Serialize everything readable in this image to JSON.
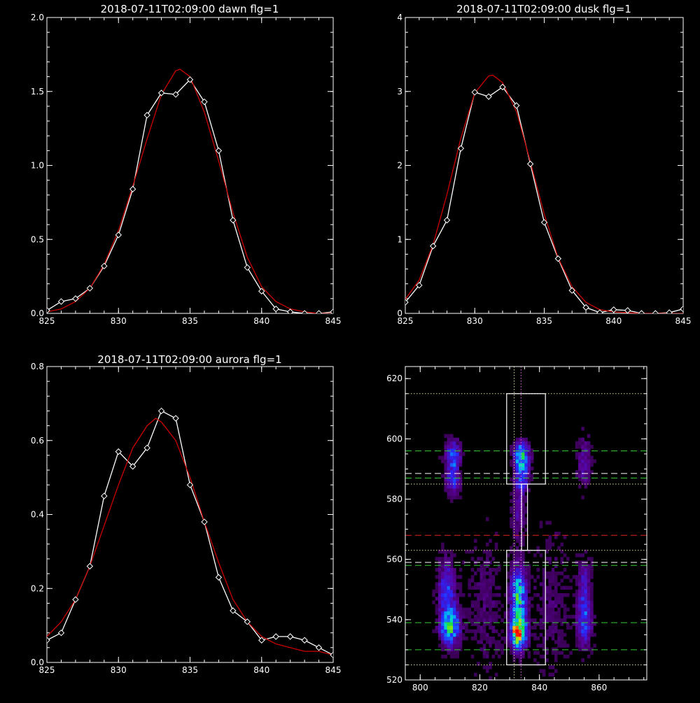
{
  "chart_data": [
    {
      "id": "dawn",
      "type": "line",
      "title": "2018-07-11T02:09:00 dawn flg=1",
      "xlabel": "",
      "ylabel": "",
      "xlim": [
        825,
        845
      ],
      "ylim": [
        0,
        2.0
      ],
      "xticks": [
        "825",
        "830",
        "835",
        "840",
        "845"
      ],
      "yticks": [
        "0.0",
        "0.5",
        "1.0",
        "1.5",
        "2.0"
      ],
      "grid": false,
      "series": [
        {
          "color": "#ffffff",
          "marker": "diamond",
          "x": [
            825,
            826,
            827,
            828,
            829,
            830,
            831,
            832,
            833,
            834,
            835,
            836,
            837,
            838,
            839,
            840,
            841,
            842,
            843,
            844,
            845
          ],
          "y": [
            0.02,
            0.08,
            0.1,
            0.17,
            0.32,
            0.53,
            0.84,
            1.34,
            1.49,
            1.48,
            1.58,
            1.43,
            1.1,
            0.63,
            0.31,
            0.15,
            0.03,
            0.01,
            0.0,
            0.0,
            0.01
          ]
        },
        {
          "color": "#cc0000",
          "marker": "none",
          "x": [
            825,
            826,
            827,
            828,
            829,
            830,
            831,
            832,
            833,
            834,
            834.3,
            835,
            836,
            837,
            838,
            839,
            840,
            841,
            842,
            843,
            844,
            845
          ],
          "y": [
            0.01,
            0.03,
            0.08,
            0.17,
            0.33,
            0.56,
            0.86,
            1.18,
            1.48,
            1.64,
            1.65,
            1.6,
            1.36,
            1.03,
            0.68,
            0.38,
            0.18,
            0.08,
            0.03,
            0.01,
            0.0,
            0.0
          ]
        }
      ]
    },
    {
      "id": "dusk",
      "type": "line",
      "title": "2018-07-11T02:09:00 dusk flg=1",
      "xlabel": "",
      "ylabel": "",
      "xlim": [
        825,
        845
      ],
      "ylim": [
        0,
        4
      ],
      "xticks": [
        "825",
        "830",
        "835",
        "840",
        "845"
      ],
      "yticks": [
        "0",
        "1",
        "2",
        "3",
        "4"
      ],
      "grid": false,
      "series": [
        {
          "color": "#ffffff",
          "marker": "diamond",
          "x": [
            825,
            826,
            827,
            828,
            829,
            830,
            831,
            832,
            833,
            834,
            835,
            836,
            837,
            838,
            839,
            840,
            841,
            842,
            843,
            844,
            845
          ],
          "y": [
            0.15,
            0.38,
            0.91,
            1.26,
            2.23,
            2.99,
            2.93,
            3.06,
            2.81,
            2.02,
            1.23,
            0.74,
            0.31,
            0.08,
            0.01,
            0.05,
            0.04,
            0.0,
            0.0,
            0.01,
            0.06
          ]
        },
        {
          "color": "#cc0000",
          "marker": "none",
          "x": [
            825,
            826,
            827,
            828,
            829,
            830,
            831,
            831.3,
            832,
            833,
            834,
            835,
            836,
            837,
            838,
            839,
            840,
            841,
            842,
            843,
            844,
            845
          ],
          "y": [
            0.19,
            0.45,
            0.93,
            1.61,
            2.37,
            2.98,
            3.21,
            3.22,
            3.12,
            2.73,
            2.05,
            1.34,
            0.75,
            0.36,
            0.15,
            0.05,
            0.02,
            0.01,
            0.0,
            0.0,
            0.0,
            0.0
          ]
        }
      ]
    },
    {
      "id": "aurora",
      "type": "line",
      "title": "2018-07-11T02:09:00 aurora flg=1",
      "xlabel": "",
      "ylabel": "",
      "xlim": [
        825,
        845
      ],
      "ylim": [
        0,
        0.8
      ],
      "xticks": [
        "825",
        "830",
        "835",
        "840",
        "845"
      ],
      "yticks": [
        "0.0",
        "0.2",
        "0.4",
        "0.6",
        "0.8"
      ],
      "grid": false,
      "series": [
        {
          "color": "#ffffff",
          "marker": "diamond",
          "x": [
            825,
            826,
            827,
            828,
            829,
            830,
            831,
            832,
            833,
            834,
            835,
            836,
            837,
            838,
            839,
            840,
            841,
            842,
            843,
            844,
            845
          ],
          "y": [
            0.06,
            0.08,
            0.17,
            0.26,
            0.45,
            0.57,
            0.53,
            0.58,
            0.68,
            0.66,
            0.48,
            0.38,
            0.23,
            0.14,
            0.11,
            0.06,
            0.07,
            0.07,
            0.06,
            0.04,
            0.02
          ]
        },
        {
          "color": "#cc0000",
          "marker": "none",
          "x": [
            825,
            826,
            827,
            828,
            829,
            830,
            831,
            832,
            832.6,
            833,
            834,
            835,
            836,
            837,
            838,
            839,
            840,
            841,
            842,
            843,
            844,
            845
          ],
          "y": [
            0.07,
            0.11,
            0.17,
            0.26,
            0.37,
            0.48,
            0.58,
            0.64,
            0.66,
            0.65,
            0.6,
            0.5,
            0.38,
            0.27,
            0.17,
            0.11,
            0.07,
            0.05,
            0.04,
            0.03,
            0.03,
            0.02
          ]
        }
      ]
    },
    {
      "id": "image-panel",
      "type": "heatmap",
      "title": "",
      "xlabel": "",
      "ylabel": "",
      "xlim": [
        795,
        876
      ],
      "ylim": [
        520,
        624
      ],
      "xticks": [
        "800",
        "820",
        "840",
        "860"
      ],
      "yticks": [
        "520",
        "540",
        "560",
        "580",
        "600",
        "620"
      ],
      "colormap": "rainbow",
      "background_color": "#000000",
      "blobs": [
        {
          "x": 833,
          "y": 536,
          "sx": 1.6,
          "sy": 3.5,
          "value": 1.0
        },
        {
          "x": 833,
          "y": 548,
          "sx": 1.6,
          "sy": 6.0,
          "value": 0.55
        },
        {
          "x": 834,
          "y": 594,
          "sx": 1.6,
          "sy": 3.0,
          "value": 0.55
        },
        {
          "x": 834,
          "y": 587,
          "sx": 1.4,
          "sy": 3.0,
          "value": 0.3
        },
        {
          "x": 810,
          "y": 538,
          "sx": 2.0,
          "sy": 4.0,
          "value": 0.55
        },
        {
          "x": 809,
          "y": 550,
          "sx": 1.8,
          "sy": 6.0,
          "value": 0.3
        },
        {
          "x": 811,
          "y": 594,
          "sx": 1.6,
          "sy": 3.5,
          "value": 0.33
        },
        {
          "x": 811,
          "y": 586,
          "sx": 1.5,
          "sy": 3.0,
          "value": 0.22
        },
        {
          "x": 855,
          "y": 539,
          "sx": 1.6,
          "sy": 5.0,
          "value": 0.28
        },
        {
          "x": 855,
          "y": 550,
          "sx": 1.5,
          "sy": 6.0,
          "value": 0.18
        },
        {
          "x": 855,
          "y": 592,
          "sx": 1.5,
          "sy": 5.0,
          "value": 0.14
        },
        {
          "x": 822,
          "y": 545,
          "sx": 4.0,
          "sy": 14.0,
          "value": 0.06
        },
        {
          "x": 844,
          "y": 545,
          "sx": 4.0,
          "sy": 14.0,
          "value": 0.06
        },
        {
          "x": 833,
          "y": 575,
          "sx": 1.5,
          "sy": 6.0,
          "value": 0.12
        }
      ],
      "boxes": [
        {
          "color": "#ffffff",
          "x": [
            829,
            842
          ],
          "y": [
            585,
            615
          ]
        },
        {
          "color": "#ffffff",
          "x": [
            829,
            842
          ],
          "y": [
            525,
            563
          ]
        },
        {
          "color": "#ffffff",
          "x": [
            834,
            836
          ],
          "y": [
            563,
            585
          ]
        }
      ],
      "hlines": [
        {
          "y": 615,
          "color": "#dddd88",
          "style": "dotted"
        },
        {
          "y": 596,
          "color": "#33cc33",
          "style": "dashed"
        },
        {
          "y": 588.5,
          "color": "#ffffff",
          "style": "dashed"
        },
        {
          "y": 587,
          "color": "#33cc33",
          "style": "dashed"
        },
        {
          "y": 585,
          "color": "#dddd88",
          "style": "dotted"
        },
        {
          "y": 568,
          "color": "#dd2222",
          "style": "dashed"
        },
        {
          "y": 563,
          "color": "#dddd88",
          "style": "dotted"
        },
        {
          "y": 559,
          "color": "#ffffff",
          "style": "dashed"
        },
        {
          "y": 558,
          "color": "#33cc33",
          "style": "dashed"
        },
        {
          "y": 539,
          "color": "#33cc33",
          "style": "dashed"
        },
        {
          "y": 530,
          "color": "#33cc33",
          "style": "dashed"
        },
        {
          "y": 525,
          "color": "#dddd88",
          "style": "dotted"
        }
      ],
      "vlines": [
        {
          "x": 831.5,
          "color": "#dddd88",
          "style": "dotted"
        },
        {
          "x": 833.8,
          "color": "#ee66ee",
          "style": "dotted"
        }
      ]
    }
  ]
}
